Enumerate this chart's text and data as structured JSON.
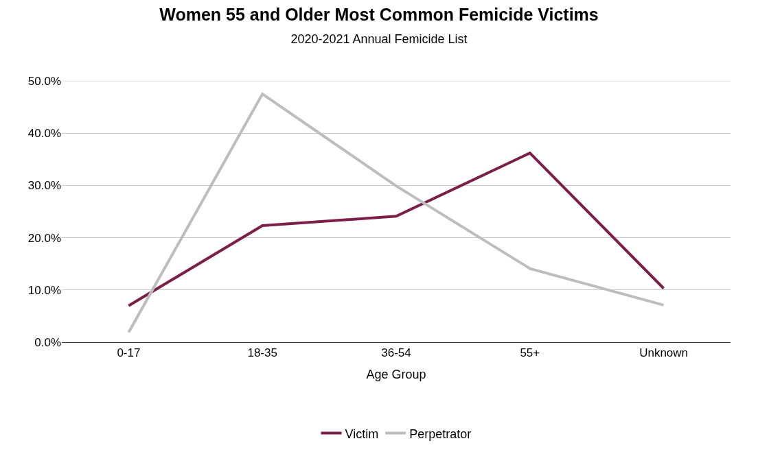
{
  "chart_data": {
    "type": "line",
    "title": "Women 55 and Older Most Common Femicide Victims",
    "subtitle": "2020-2021 Annual Femicide List",
    "xlabel": "Age Group",
    "categories": [
      "0-17",
      "18-35",
      "36-54",
      "55+",
      "Unknown"
    ],
    "series": [
      {
        "name": "Victim",
        "color": "#7b1f48",
        "values": [
          7.0,
          22.3,
          24.1,
          36.2,
          10.3
        ]
      },
      {
        "name": "Perpetrator",
        "color": "#bdbdbd",
        "values": [
          1.9,
          47.5,
          29.9,
          14.1,
          7.1
        ]
      }
    ],
    "ylim": [
      0,
      50
    ],
    "yticks": [
      {
        "value": 0,
        "label": "0.0%"
      },
      {
        "value": 10,
        "label": "10.0%"
      },
      {
        "value": 20,
        "label": "20.0%"
      },
      {
        "value": 30,
        "label": "30.0%"
      },
      {
        "value": 40,
        "label": "40.0%"
      },
      {
        "value": 50,
        "label": "50.0%"
      }
    ],
    "grid": "y",
    "legend": "bottom",
    "marker": "none",
    "line_style": "solid"
  }
}
